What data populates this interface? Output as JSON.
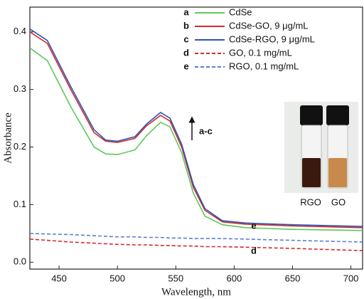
{
  "chart_data": {
    "type": "line",
    "x_label": "Wavelength, nm",
    "y_label": "Absorbance",
    "x": [
      425,
      440,
      460,
      480,
      490,
      500,
      515,
      525,
      537,
      545,
      555,
      565,
      575,
      590,
      610,
      650,
      710
    ],
    "series": [
      {
        "letter": "a",
        "name": "CdSe",
        "color": "#5cc85a",
        "dash": false,
        "values": [
          0.372,
          0.35,
          0.27,
          0.2,
          0.188,
          0.187,
          0.195,
          0.22,
          0.243,
          0.235,
          0.19,
          0.12,
          0.08,
          0.065,
          0.06,
          0.057,
          0.055
        ]
      },
      {
        "letter": "b",
        "name": "CdSe-GO, 9 μg/mL",
        "color": "#d42a2a",
        "dash": false,
        "values": [
          0.4,
          0.38,
          0.3,
          0.225,
          0.21,
          0.208,
          0.215,
          0.237,
          0.255,
          0.245,
          0.2,
          0.13,
          0.09,
          0.07,
          0.066,
          0.063,
          0.06
        ]
      },
      {
        "letter": "c",
        "name": "CdSe-RGO, 9 μg/mL",
        "color": "#2a55b8",
        "dash": false,
        "values": [
          0.405,
          0.385,
          0.305,
          0.23,
          0.212,
          0.21,
          0.218,
          0.24,
          0.26,
          0.25,
          0.205,
          0.135,
          0.093,
          0.072,
          0.068,
          0.065,
          0.062
        ]
      },
      {
        "letter": "d",
        "name": "GO, 0.1 mg/mL",
        "color": "#d42a2a",
        "dash": true,
        "values": [
          0.04,
          0.038,
          0.035,
          0.033,
          0.032,
          0.031,
          0.03,
          0.03,
          0.029,
          0.029,
          0.028,
          0.028,
          0.027,
          0.027,
          0.026,
          0.024,
          0.02
        ]
      },
      {
        "letter": "e",
        "name": "RGO, 0.1 mg/mL",
        "color": "#5a7fd0",
        "dash": true,
        "values": [
          0.05,
          0.049,
          0.048,
          0.046,
          0.045,
          0.044,
          0.044,
          0.043,
          0.043,
          0.042,
          0.042,
          0.041,
          0.041,
          0.041,
          0.04,
          0.038,
          0.035
        ]
      }
    ],
    "annotations": [
      "a-c",
      "e",
      "d",
      "RGO",
      "GO"
    ],
    "xlim": [
      425,
      710
    ],
    "ylim": [
      -0.012,
      0.443
    ],
    "xticks": [
      450,
      500,
      550,
      600,
      650,
      700
    ],
    "yticks": [
      {
        "value": 0,
        "label": "0.0"
      },
      0.1,
      0.2,
      0.3,
      0.4
    ]
  }
}
